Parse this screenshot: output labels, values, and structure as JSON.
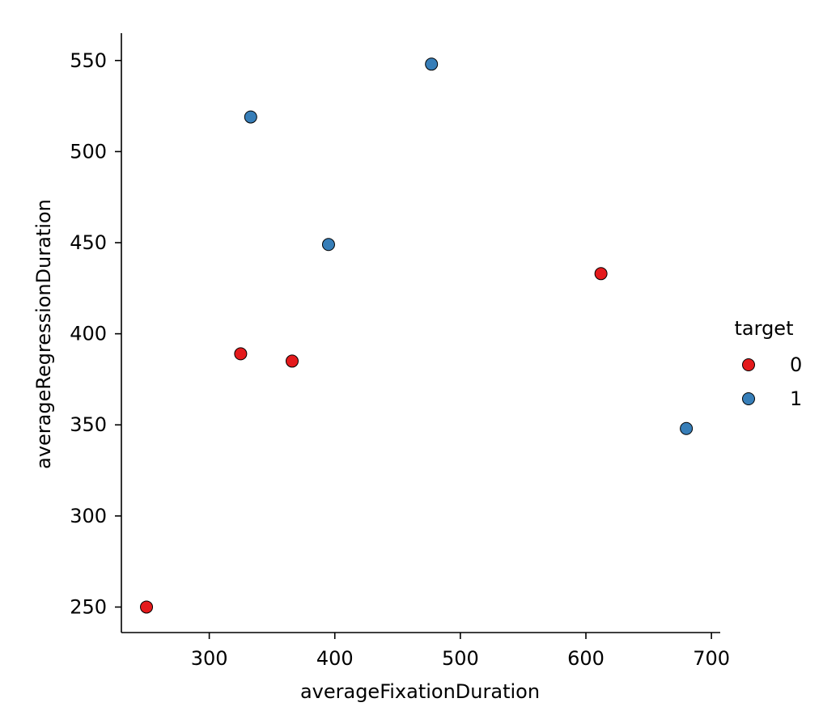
{
  "chart_data": {
    "type": "scatter",
    "title": "",
    "xlabel": "averageFixationDuration",
    "ylabel": "averageRegressionDuration",
    "xlim": [
      230,
      707
    ],
    "ylim": [
      236,
      565
    ],
    "xticks": [
      300,
      400,
      500,
      600,
      700
    ],
    "yticks": [
      250,
      300,
      350,
      400,
      450,
      500,
      550
    ],
    "grid": false,
    "legend": {
      "title": "target",
      "placement": "right",
      "entries": [
        {
          "label": "0",
          "color": "#e41a1c"
        },
        {
          "label": "1",
          "color": "#377eb8"
        }
      ]
    },
    "series": [
      {
        "name": "0",
        "color": "#e41a1c",
        "points": [
          {
            "x": 250,
            "y": 250
          },
          {
            "x": 325,
            "y": 389
          },
          {
            "x": 366,
            "y": 385
          },
          {
            "x": 612,
            "y": 433
          }
        ]
      },
      {
        "name": "1",
        "color": "#377eb8",
        "points": [
          {
            "x": 333,
            "y": 519
          },
          {
            "x": 395,
            "y": 449
          },
          {
            "x": 477,
            "y": 548
          },
          {
            "x": 680,
            "y": 348
          }
        ]
      }
    ]
  }
}
